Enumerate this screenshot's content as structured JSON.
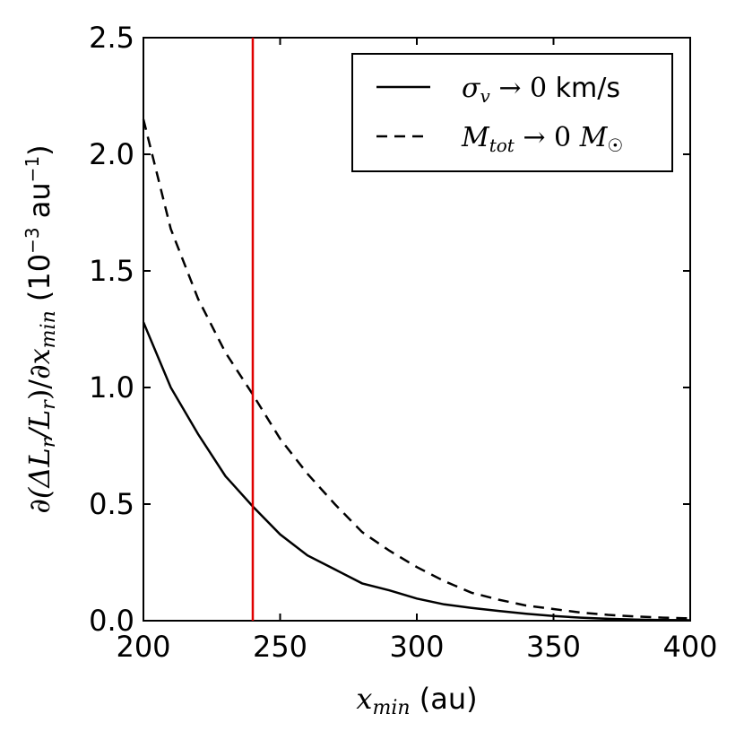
{
  "chart_data": {
    "type": "line",
    "title": "",
    "xlabel": "x_min (au)",
    "ylabel": "∂(ΔL_r/L_r)/∂x_min (10^-3 au^-1)",
    "xlim": [
      200,
      400
    ],
    "ylim": [
      0,
      2.5
    ],
    "xticks": [
      "200",
      "250",
      "300",
      "350",
      "400"
    ],
    "yticks": [
      "0.0",
      "0.5",
      "1.0",
      "1.5",
      "2.0",
      "2.5"
    ],
    "grid": false,
    "legend_position": "top-right",
    "series": [
      {
        "name": "σ_v → 0 km/s",
        "style": "solid",
        "color": "#000000",
        "x": [
          200,
          210,
          220,
          230,
          240,
          250,
          260,
          270,
          280,
          290,
          300,
          310,
          320,
          330,
          340,
          350,
          360,
          370,
          380,
          390,
          400
        ],
        "y": [
          1.28,
          1.0,
          0.8,
          0.62,
          0.49,
          0.37,
          0.28,
          0.22,
          0.16,
          0.13,
          0.095,
          0.07,
          0.055,
          0.042,
          0.03,
          0.02,
          0.013,
          0.008,
          0.005,
          0.003,
          0.002
        ]
      },
      {
        "name": "M_tot → 0 M_☉",
        "style": "dashed",
        "color": "#000000",
        "x": [
          200,
          210,
          220,
          230,
          240,
          250,
          260,
          270,
          280,
          290,
          300,
          310,
          320,
          330,
          340,
          350,
          360,
          370,
          380,
          390,
          400
        ],
        "y": [
          2.15,
          1.68,
          1.38,
          1.15,
          0.97,
          0.78,
          0.63,
          0.5,
          0.38,
          0.3,
          0.23,
          0.17,
          0.12,
          0.09,
          0.065,
          0.05,
          0.035,
          0.025,
          0.018,
          0.013,
          0.01
        ]
      }
    ],
    "vline": {
      "x": 240,
      "color": "#e00000"
    }
  }
}
